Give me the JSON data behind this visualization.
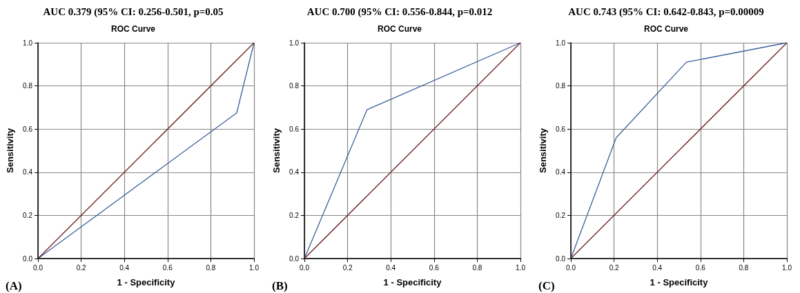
{
  "chart_data": [
    {
      "type": "line",
      "title": "AUC 0.379 (95% CI: 0.256-0.501, p=0.05",
      "subtitle": "ROC Curve",
      "xlabel": "1 - Specificity",
      "ylabel": "Sensitivity",
      "annotations": [
        "(A)"
      ],
      "series": [
        {
          "x": [
            0,
            0.92,
            1
          ],
          "values": [
            0,
            0.675,
            1
          ],
          "color": "#3a5f9a"
        },
        {
          "x": [
            0,
            1
          ],
          "values": [
            0,
            1
          ],
          "color": "#6b1a1a"
        }
      ],
      "xlim": [
        0,
        1
      ],
      "ylim": [
        0,
        1
      ],
      "xticks": [
        {
          "value": 0,
          "label": "0.0"
        },
        {
          "value": 0.2,
          "label": "0.2"
        },
        {
          "value": 0.4,
          "label": "0.4"
        },
        {
          "value": 0.6,
          "label": "0.6"
        },
        {
          "value": 0.8,
          "label": "0.8"
        },
        {
          "value": 1,
          "label": "1.0"
        }
      ],
      "yticks": [
        {
          "value": 0,
          "label": "0.0"
        },
        {
          "value": 0.2,
          "label": "0.2"
        },
        {
          "value": 0.4,
          "label": "0.4"
        },
        {
          "value": 0.6,
          "label": "0.6"
        },
        {
          "value": 0.8,
          "label": "0.8"
        },
        {
          "value": 1,
          "label": "1.0"
        }
      ],
      "grid": true,
      "marker": "none",
      "line_style": "solid"
    },
    {
      "type": "line",
      "title": "AUC 0.700 (95% CI: 0.556-0.844, p=0.012",
      "subtitle": "ROC Curve",
      "xlabel": "1 - Specificity",
      "ylabel": "Sensitivity",
      "annotations": [
        "(B)"
      ],
      "series": [
        {
          "x": [
            0,
            0.29,
            1
          ],
          "values": [
            0,
            0.69,
            1
          ],
          "color": "#3a5f9a"
        },
        {
          "x": [
            0,
            1
          ],
          "values": [
            0,
            1
          ],
          "color": "#6b1a1a"
        }
      ],
      "xlim": [
        0,
        1
      ],
      "ylim": [
        0,
        1
      ],
      "xticks": [
        {
          "value": 0,
          "label": "0.0"
        },
        {
          "value": 0.2,
          "label": "0.2"
        },
        {
          "value": 0.4,
          "label": "0.4"
        },
        {
          "value": 0.6,
          "label": "0.6"
        },
        {
          "value": 0.8,
          "label": "0.8"
        },
        {
          "value": 1,
          "label": "1.0"
        }
      ],
      "yticks": [
        {
          "value": 0,
          "label": "0.0"
        },
        {
          "value": 0.2,
          "label": "0.2"
        },
        {
          "value": 0.4,
          "label": "0.4"
        },
        {
          "value": 0.6,
          "label": "0.6"
        },
        {
          "value": 0.8,
          "label": "0.8"
        },
        {
          "value": 1,
          "label": "1.0"
        }
      ],
      "grid": true,
      "marker": "none",
      "line_style": "solid"
    },
    {
      "type": "line",
      "title": "AUC 0.743 (95% CI: 0.642-0.843, p=0.00009",
      "subtitle": "ROC Curve",
      "xlabel": "1 - Specificity",
      "ylabel": "Sensitivity",
      "annotations": [
        "(C)"
      ],
      "series": [
        {
          "x": [
            0,
            0.21,
            0.535,
            1
          ],
          "values": [
            0,
            0.56,
            0.91,
            1
          ],
          "color": "#3a5f9a"
        },
        {
          "x": [
            0,
            1
          ],
          "values": [
            0,
            1
          ],
          "color": "#6b1a1a"
        }
      ],
      "xlim": [
        0,
        1
      ],
      "ylim": [
        0,
        1
      ],
      "xticks": [
        {
          "value": 0,
          "label": "0.0"
        },
        {
          "value": 0.2,
          "label": "0.2"
        },
        {
          "value": 0.4,
          "label": "0.4"
        },
        {
          "value": 0.6,
          "label": "0.6"
        },
        {
          "value": 0.8,
          "label": "0.8"
        },
        {
          "value": 1,
          "label": "1.0"
        }
      ],
      "yticks": [
        {
          "value": 0,
          "label": "0.0"
        },
        {
          "value": 0.2,
          "label": "0.2"
        },
        {
          "value": 0.4,
          "label": "0.4"
        },
        {
          "value": 0.6,
          "label": "0.6"
        },
        {
          "value": 0.8,
          "label": "0.8"
        },
        {
          "value": 1,
          "label": "1.0"
        }
      ],
      "grid": true,
      "marker": "none",
      "line_style": "solid"
    }
  ]
}
